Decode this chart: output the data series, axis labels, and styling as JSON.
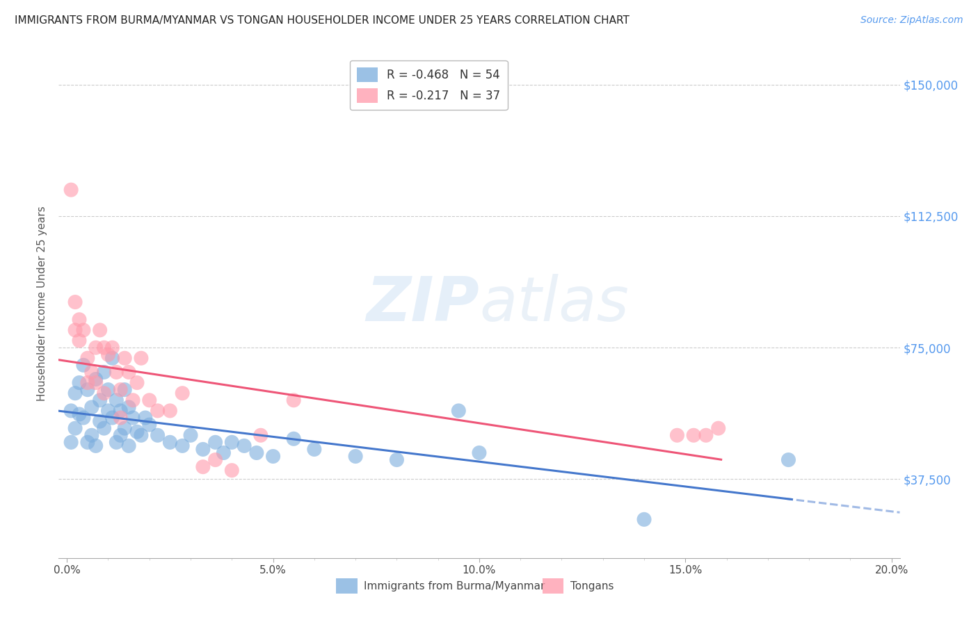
{
  "title": "IMMIGRANTS FROM BURMA/MYANMAR VS TONGAN HOUSEHOLDER INCOME UNDER 25 YEARS CORRELATION CHART",
  "source": "Source: ZipAtlas.com",
  "ylabel": "Householder Income Under 25 years",
  "xlabel_ticks": [
    "0.0%",
    "",
    "",
    "",
    "",
    "5.0%",
    "",
    "",
    "",
    "",
    "10.0%",
    "",
    "",
    "",
    "",
    "15.0%",
    "",
    "",
    "",
    "",
    "20.0%"
  ],
  "xlabel_vals": [
    0.0,
    0.01,
    0.02,
    0.03,
    0.04,
    0.05,
    0.06,
    0.07,
    0.08,
    0.09,
    0.1,
    0.11,
    0.12,
    0.13,
    0.14,
    0.15,
    0.16,
    0.17,
    0.18,
    0.19,
    0.2
  ],
  "ylabel_ticks": [
    "$37,500",
    "$75,000",
    "$112,500",
    "$150,000"
  ],
  "ylabel_vals": [
    37500,
    75000,
    112500,
    150000
  ],
  "xlim": [
    -0.002,
    0.202
  ],
  "ylim": [
    15000,
    160000
  ],
  "blue_r": -0.468,
  "blue_n": 54,
  "pink_r": -0.217,
  "pink_n": 37,
  "blue_color": "#7AADDD",
  "pink_color": "#FF99AA",
  "blue_line_color": "#4477CC",
  "pink_line_color": "#EE5577",
  "watermark_zip": "ZIP",
  "watermark_atlas": "atlas",
  "blue_points_x": [
    0.001,
    0.001,
    0.002,
    0.002,
    0.003,
    0.003,
    0.004,
    0.004,
    0.005,
    0.005,
    0.006,
    0.006,
    0.007,
    0.007,
    0.008,
    0.008,
    0.009,
    0.009,
    0.01,
    0.01,
    0.011,
    0.011,
    0.012,
    0.012,
    0.013,
    0.013,
    0.014,
    0.014,
    0.015,
    0.015,
    0.016,
    0.017,
    0.018,
    0.019,
    0.02,
    0.022,
    0.025,
    0.028,
    0.03,
    0.033,
    0.036,
    0.038,
    0.04,
    0.043,
    0.046,
    0.05,
    0.055,
    0.06,
    0.07,
    0.08,
    0.095,
    0.1,
    0.14,
    0.175
  ],
  "blue_points_y": [
    57000,
    48000,
    62000,
    52000,
    56000,
    65000,
    70000,
    55000,
    63000,
    48000,
    58000,
    50000,
    66000,
    47000,
    60000,
    54000,
    68000,
    52000,
    63000,
    57000,
    72000,
    55000,
    60000,
    48000,
    57000,
    50000,
    63000,
    52000,
    58000,
    47000,
    55000,
    51000,
    50000,
    55000,
    53000,
    50000,
    48000,
    47000,
    50000,
    46000,
    48000,
    45000,
    48000,
    47000,
    45000,
    44000,
    49000,
    46000,
    44000,
    43000,
    57000,
    45000,
    26000,
    43000
  ],
  "pink_points_x": [
    0.001,
    0.002,
    0.002,
    0.003,
    0.003,
    0.004,
    0.005,
    0.005,
    0.006,
    0.007,
    0.007,
    0.008,
    0.009,
    0.009,
    0.01,
    0.011,
    0.012,
    0.013,
    0.013,
    0.014,
    0.015,
    0.016,
    0.017,
    0.018,
    0.02,
    0.022,
    0.025,
    0.028,
    0.033,
    0.036,
    0.04,
    0.047,
    0.055,
    0.148,
    0.152,
    0.155,
    0.158
  ],
  "pink_points_y": [
    120000,
    88000,
    80000,
    83000,
    77000,
    80000,
    65000,
    72000,
    68000,
    65000,
    75000,
    80000,
    75000,
    62000,
    73000,
    75000,
    68000,
    55000,
    63000,
    72000,
    68000,
    60000,
    65000,
    72000,
    60000,
    57000,
    57000,
    62000,
    41000,
    43000,
    40000,
    50000,
    60000,
    50000,
    50000,
    50000,
    52000
  ]
}
